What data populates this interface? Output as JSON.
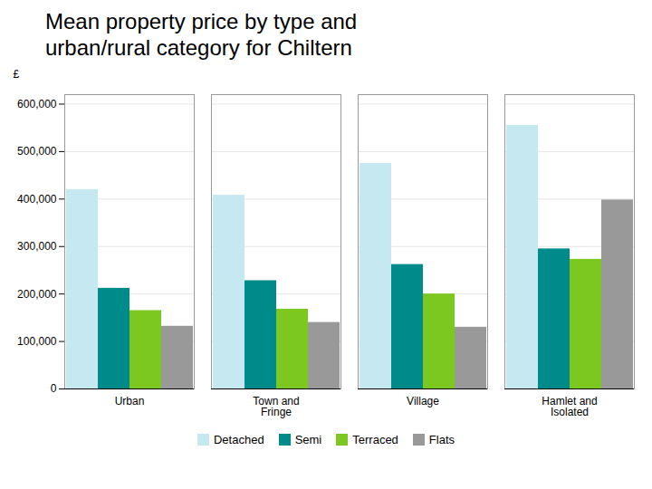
{
  "chart_data": {
    "type": "bar",
    "title": "Mean property price by type and\nurban/rural category for Chiltern",
    "categories": [
      "Urban",
      "Town and\nFringe",
      "Village",
      "Hamlet and\nIsolated"
    ],
    "series": [
      {
        "name": "Detached",
        "color": "#c6e8f0",
        "values": [
          420000,
          408000,
          475000,
          555000
        ]
      },
      {
        "name": "Semi",
        "color": "#008b8b",
        "values": [
          212000,
          228000,
          262000,
          295000
        ]
      },
      {
        "name": "Terraced",
        "color": "#7dc820",
        "values": [
          165000,
          168000,
          200000,
          273000
        ]
      },
      {
        "name": "Flats",
        "color": "#999999",
        "values": [
          132000,
          140000,
          130000,
          398000
        ]
      }
    ],
    "ylabel": "£",
    "ylim": [
      0,
      620000
    ],
    "yticks": [
      0,
      {
        "value": 100000,
        "label": "100,000"
      },
      {
        "value": 200000,
        "label": "200,000"
      },
      {
        "value": 300000,
        "label": "300,000"
      },
      {
        "value": 400000,
        "label": "400,000"
      },
      {
        "value": 500000,
        "label": "500,000"
      },
      {
        "value": 600000,
        "label": "600,000"
      }
    ],
    "grid": true,
    "legend": "bottom"
  }
}
